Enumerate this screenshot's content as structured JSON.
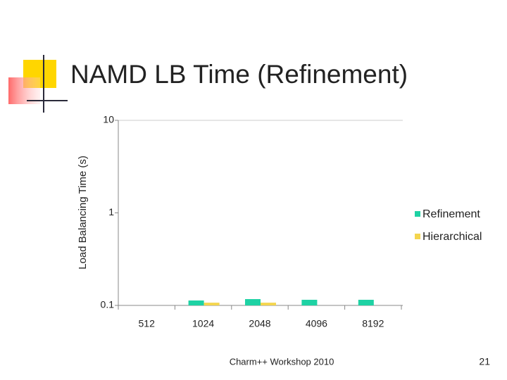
{
  "chart_data": {
    "type": "bar",
    "title": "NAMD LB Time (Refinement)",
    "ylabel": "Load Balancing Time (s)",
    "categories": [
      "512",
      "1024",
      "2048",
      "4096",
      "8192"
    ],
    "series": [
      {
        "name": "Refinement",
        "color": "#1ed2a4",
        "values": [
          null,
          0.113,
          0.117,
          0.115,
          0.115
        ]
      },
      {
        "name": "Hierarchical",
        "color": "#f4d54e",
        "values": [
          null,
          0.107,
          0.107,
          null,
          null
        ]
      }
    ],
    "ylim": [
      0.1,
      10
    ],
    "yticks": [
      0.1,
      1,
      10
    ],
    "log_y": true,
    "grid": false,
    "legend": "right"
  },
  "footer": "Charm++ Workshop 2010",
  "page_number": "21"
}
